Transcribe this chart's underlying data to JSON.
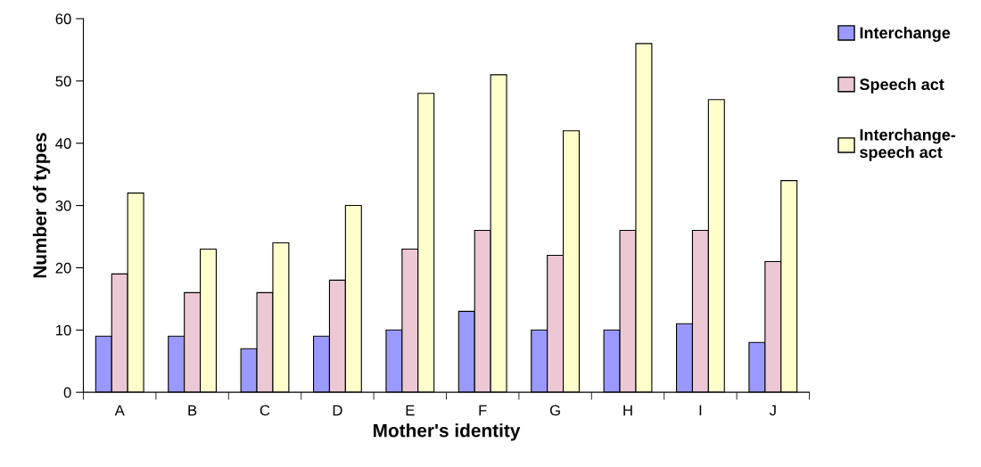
{
  "chart_data": {
    "type": "bar",
    "xlabel": "Mother's identity",
    "ylabel": "Number of types",
    "categories": [
      "A",
      "B",
      "C",
      "D",
      "E",
      "F",
      "G",
      "H",
      "I",
      "J"
    ],
    "series": [
      {
        "name": "Interchange",
        "color": "#9999ff",
        "values": [
          9,
          9,
          7,
          9,
          10,
          13,
          10,
          10,
          11,
          8
        ]
      },
      {
        "name": "Speech act",
        "color": "#ecc8d4",
        "values": [
          19,
          16,
          16,
          18,
          23,
          26,
          22,
          26,
          26,
          21
        ]
      },
      {
        "name": "Interchange-\nspeech act",
        "color": "#ffffcc",
        "values": [
          32,
          23,
          24,
          30,
          48,
          51,
          42,
          56,
          47,
          34
        ]
      }
    ],
    "ylim": [
      0,
      60
    ],
    "yticks": [
      0,
      10,
      20,
      30,
      40,
      50,
      60
    ],
    "grid": false,
    "legend": "right"
  }
}
